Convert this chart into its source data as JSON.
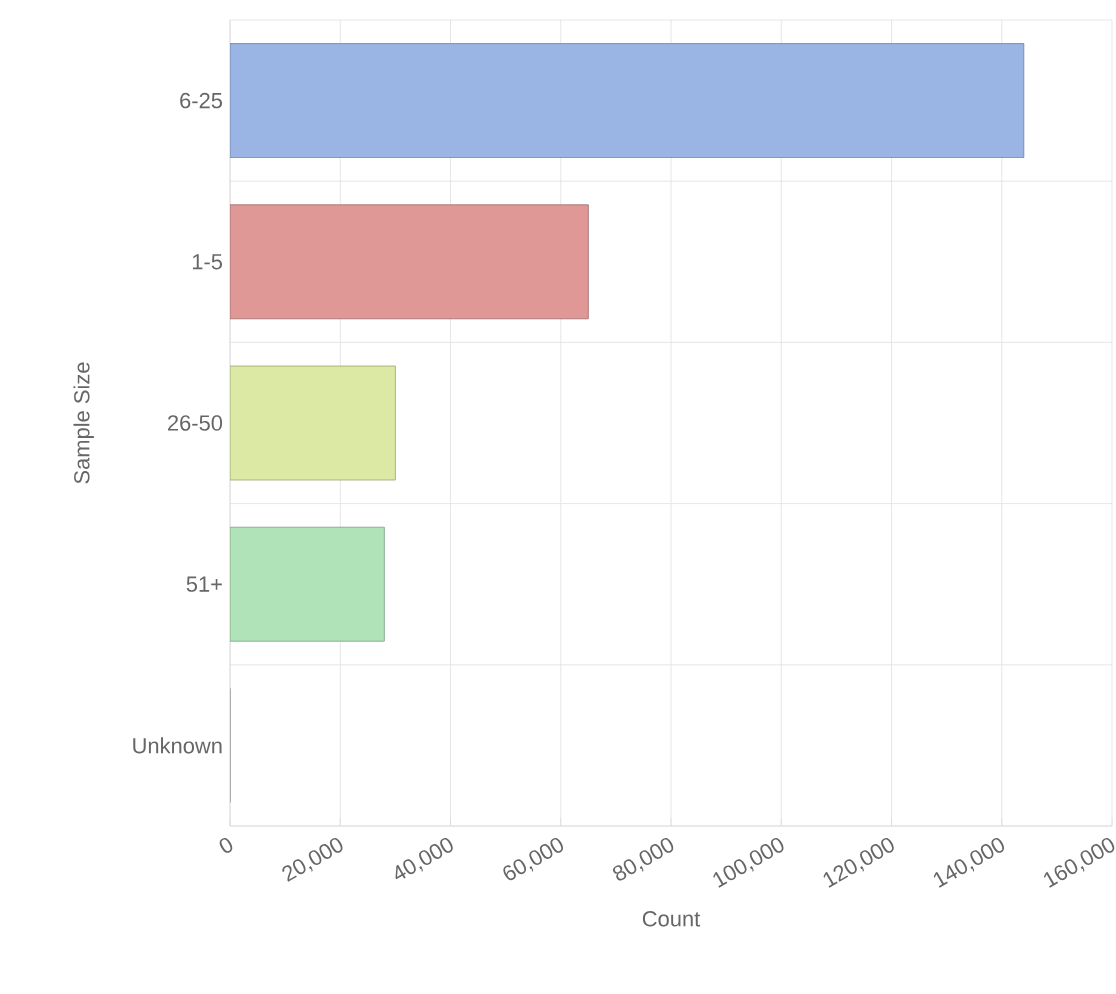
{
  "chart_data": {
    "type": "bar",
    "orientation": "horizontal",
    "xlabel": "Count",
    "ylabel": "Sample Size",
    "categories": [
      "6-25",
      "1-5",
      "26-50",
      "51+",
      "Unknown"
    ],
    "values": [
      144000,
      65000,
      30000,
      28000,
      0
    ],
    "colors": [
      "#9ab4e4",
      "#e09896",
      "#dce9a4",
      "#b0e4b8",
      "#cccccc"
    ],
    "xlim": [
      0,
      160000
    ],
    "xticks": [
      {
        "value": 0,
        "label": "0"
      },
      {
        "value": 20000,
        "label": "20,000"
      },
      {
        "value": 40000,
        "label": "40,000"
      },
      {
        "value": 60000,
        "label": "60,000"
      },
      {
        "value": 80000,
        "label": "80,000"
      },
      {
        "value": 100000,
        "label": "100,000"
      },
      {
        "value": 120000,
        "label": "120,000"
      },
      {
        "value": 140000,
        "label": "140,000"
      },
      {
        "value": 160000,
        "label": "160,000"
      }
    ],
    "grid": true
  }
}
